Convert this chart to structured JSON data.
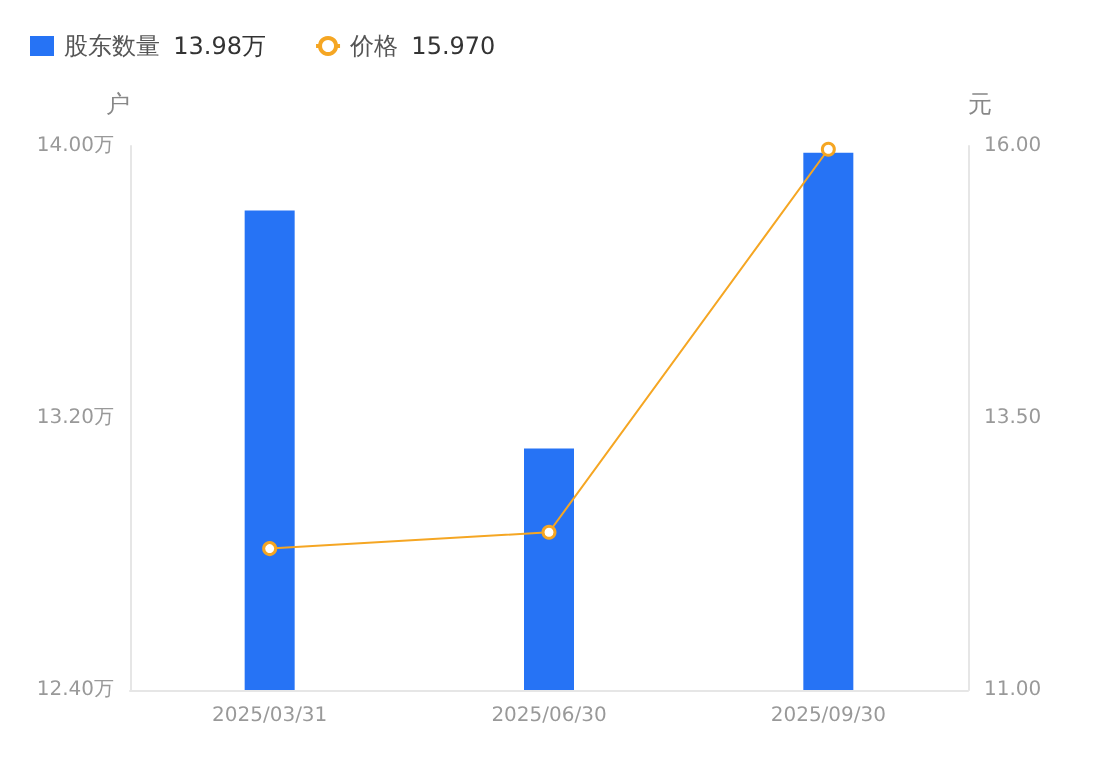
{
  "chart_data": {
    "type": "bar",
    "categories": [
      "2025/03/31",
      "2025/06/30",
      "2025/09/30"
    ],
    "series": [
      {
        "name": "股东数量",
        "color": "#2673f5",
        "values": [
          13.81,
          13.11,
          13.98
        ]
      },
      {
        "name": "价格",
        "type": "line",
        "axis": "y2",
        "color": "#f5a623",
        "values": [
          12.3,
          12.45,
          15.97
        ]
      }
    ],
    "annotations": [
      "13.98万",
      "15.970"
    ],
    "ylabel": "户",
    "y2label": "元",
    "ylim": [
      12.4,
      14.0
    ],
    "yticks": [
      {
        "value": 12.4,
        "label": "12.40万"
      },
      {
        "value": 13.2,
        "label": "13.20万"
      },
      {
        "value": 14.0,
        "label": "14.00万"
      }
    ],
    "y2lim": [
      11,
      16
    ],
    "y2ticks": [
      {
        "value": 11,
        "label": "11.00"
      },
      {
        "value": 13.5,
        "label": "13.50"
      },
      {
        "value": 16,
        "label": "16.00"
      }
    ],
    "legend": "top left",
    "marker": "circle",
    "line_style": "solid",
    "grid": false
  }
}
